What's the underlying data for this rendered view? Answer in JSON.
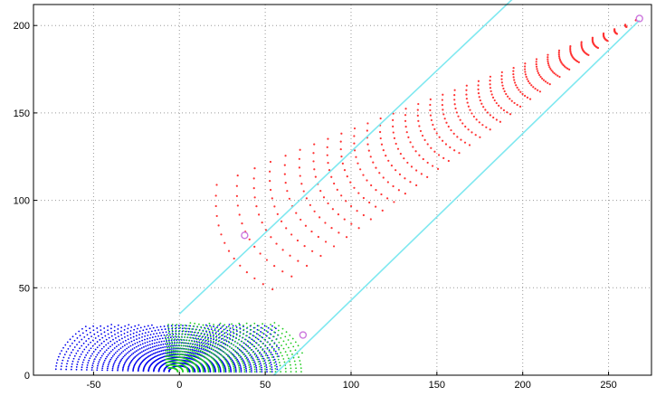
{
  "chart_data": {
    "type": "scatter",
    "title": "",
    "xlabel": "",
    "ylabel": "",
    "xlim": [
      -85,
      275
    ],
    "ylim": [
      0,
      212
    ],
    "grid": true,
    "x_ticks": [
      -50,
      0,
      50,
      100,
      150,
      200,
      250
    ],
    "y_ticks": [
      0,
      50,
      100,
      150,
      200
    ],
    "x_tick_labels": [
      "-50",
      "0",
      "50",
      "100",
      "150",
      "200",
      "250"
    ],
    "y_tick_labels": [
      "0",
      "50",
      "100",
      "150",
      "200"
    ],
    "colors": {
      "blue_series": "#0000ee",
      "green_series": "#22cc22",
      "red_series": "#ff3333",
      "boundary_lines": "#7fe8f0",
      "markers": "#cc77dd"
    },
    "regions": {
      "blue_fan": {
        "center": [
          0,
          2
        ],
        "radius_x": [
          6,
          72
        ],
        "y_top": 29,
        "x_range": [
          -72,
          58
        ]
      },
      "green_fan": {
        "center": [
          -5,
          2
        ],
        "x_range": [
          -8,
          72
        ],
        "y_top": 30
      },
      "red_fan": {
        "apex": [
          266,
          203
        ],
        "start": [
          38,
          79
        ],
        "spread_at_start": 34,
        "arc_columns": 34,
        "points_per_column": 14
      }
    },
    "lines": [
      {
        "from": [
          0,
          35
        ],
        "to": [
          195,
          216
        ]
      },
      {
        "from": [
          55,
          0
        ],
        "to": [
          268,
          203
        ]
      }
    ],
    "markers": [
      [
        38,
        80
      ],
      [
        72,
        23
      ],
      [
        268,
        204
      ]
    ]
  }
}
